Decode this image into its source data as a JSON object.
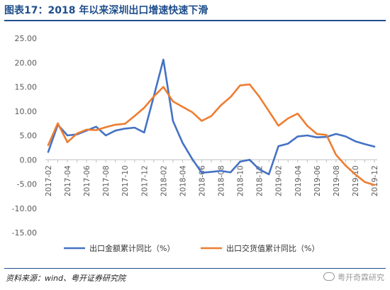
{
  "header": {
    "title": "图表17：2018 年以来深圳出口增速快速下滑"
  },
  "footer": {
    "source": "资料来源：wind、粤开证券研究院",
    "watermark": "粤开奇霖研究"
  },
  "colors": {
    "title": "#1f4e8c",
    "export_value": "#4472c4",
    "exchange_value": "#ed7d31"
  },
  "chart_data": {
    "type": "line",
    "title": "",
    "xlabel": "",
    "ylabel": "",
    "ylim": [
      -15,
      25
    ],
    "yticks": [
      -15,
      -10,
      -5,
      0,
      5,
      10,
      15,
      20,
      25
    ],
    "ytick_labels": [
      "-15.00",
      "-10.00",
      "-5.00",
      "0.00",
      "5.00",
      "10.00",
      "15.00",
      "20.00",
      "25.00"
    ],
    "grid": false,
    "legend": "bottom",
    "x": [
      "2017-02",
      "2017-03",
      "2017-04",
      "2017-05",
      "2017-06",
      "2017-07",
      "2017-08",
      "2017-09",
      "2017-10",
      "2017-11",
      "2017-12",
      "2018-01",
      "2018-02",
      "2018-03",
      "2018-04",
      "2018-05",
      "2018-06",
      "2018-07",
      "2018-08",
      "2018-09",
      "2018-10",
      "2018-11",
      "2018-12",
      "2019-01",
      "2019-02",
      "2019-03",
      "2019-04",
      "2019-05",
      "2019-06",
      "2019-07",
      "2019-08",
      "2019-09",
      "2019-10",
      "2019-11",
      "2019-12"
    ],
    "x_tick_labels": [
      "2017-02",
      "2017-04",
      "2017-06",
      "2017-08",
      "2017-10",
      "2017-12",
      "2018-02",
      "2018-04",
      "2018-06",
      "2018-08",
      "2018-10",
      "2018-12",
      "2019-02",
      "2019-04",
      "2019-06",
      "2019-08",
      "2019-10",
      "2019-12"
    ],
    "series": [
      {
        "name": "出口金额累计同比（%）",
        "color": "#4472c4",
        "values": [
          1.6,
          7.2,
          5.0,
          5.2,
          6.0,
          6.8,
          5.0,
          6.0,
          6.4,
          6.6,
          5.6,
          13.0,
          20.6,
          8.0,
          3.5,
          0.2,
          -2.7,
          -2.5,
          -2.3,
          -2.6,
          -0.4,
          0.0,
          -2.0,
          -3.0,
          2.8,
          3.3,
          4.8,
          5.0,
          4.6,
          4.7,
          5.3,
          4.8,
          3.8,
          3.2,
          2.7
        ]
      },
      {
        "name": "出口交货值累计同比（%）",
        "color": "#ed7d31",
        "values": [
          3.0,
          7.5,
          3.6,
          5.4,
          6.2,
          6.1,
          6.7,
          7.2,
          7.4,
          9.0,
          10.7,
          13.0,
          15.0,
          12.0,
          10.9,
          9.8,
          8.0,
          9.0,
          11.2,
          12.9,
          15.3,
          15.5,
          13.0,
          10.0,
          7.0,
          8.5,
          9.5,
          7.0,
          5.3,
          5.1,
          1.0,
          -1.2,
          -3.0,
          -4.6,
          -5.2
        ]
      }
    ]
  }
}
